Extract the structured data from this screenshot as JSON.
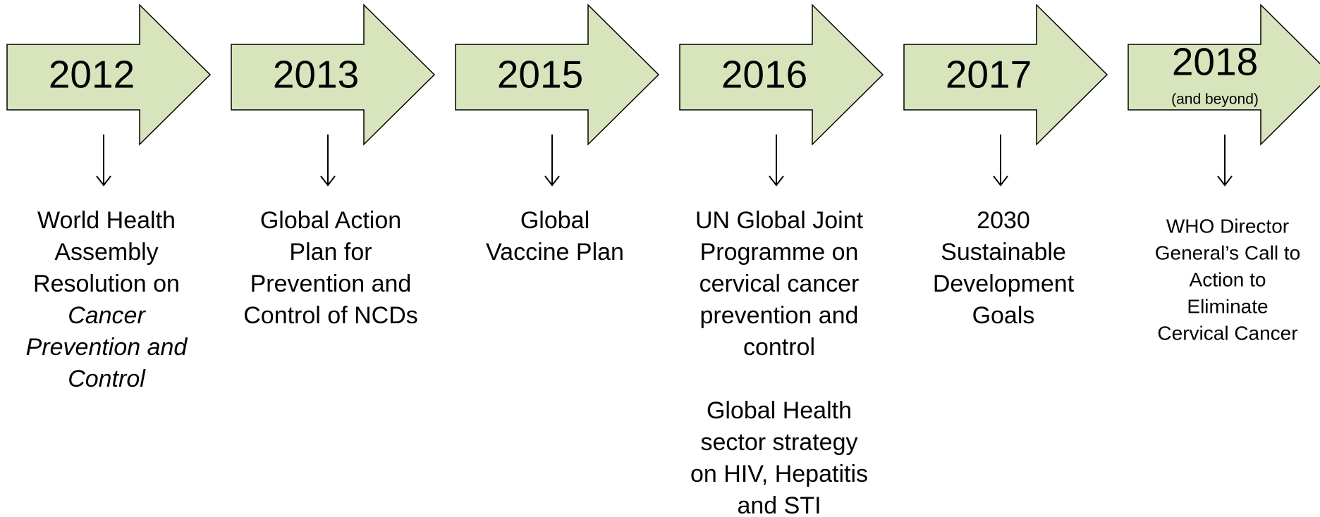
{
  "timeline": [
    {
      "year": "2012",
      "paragraphs": [
        [
          "World Health",
          "Assembly",
          "Resolution on",
          {
            "text": "Cancer",
            "style": "italic"
          },
          {
            "text": "Prevention and",
            "style": "italic"
          },
          {
            "text": "Control",
            "style": "italic"
          }
        ]
      ]
    },
    {
      "year": "2013",
      "paragraphs": [
        [
          "Global Action",
          "Plan for",
          "Prevention and",
          "Control of NCDs"
        ]
      ]
    },
    {
      "year": "2015",
      "paragraphs": [
        [
          "Global",
          "Vaccine Plan"
        ]
      ]
    },
    {
      "year": "2016",
      "paragraphs": [
        [
          "UN Global Joint",
          "Programme on",
          "cervical cancer",
          "prevention and",
          "control"
        ],
        [
          "Global Health",
          "sector strategy",
          "on HIV, Hepatitis",
          "and STI"
        ]
      ]
    },
    {
      "year": "2017",
      "paragraphs": [
        [
          "2030",
          "Sustainable",
          "Development",
          "Goals"
        ]
      ]
    },
    {
      "year": "2018",
      "note": "(and beyond)",
      "paragraphs": [
        [
          "WHO Director",
          "General’s Call to",
          "Action to",
          "Eliminate",
          "Cervical Cancer"
        ]
      ],
      "size": "small"
    }
  ]
}
